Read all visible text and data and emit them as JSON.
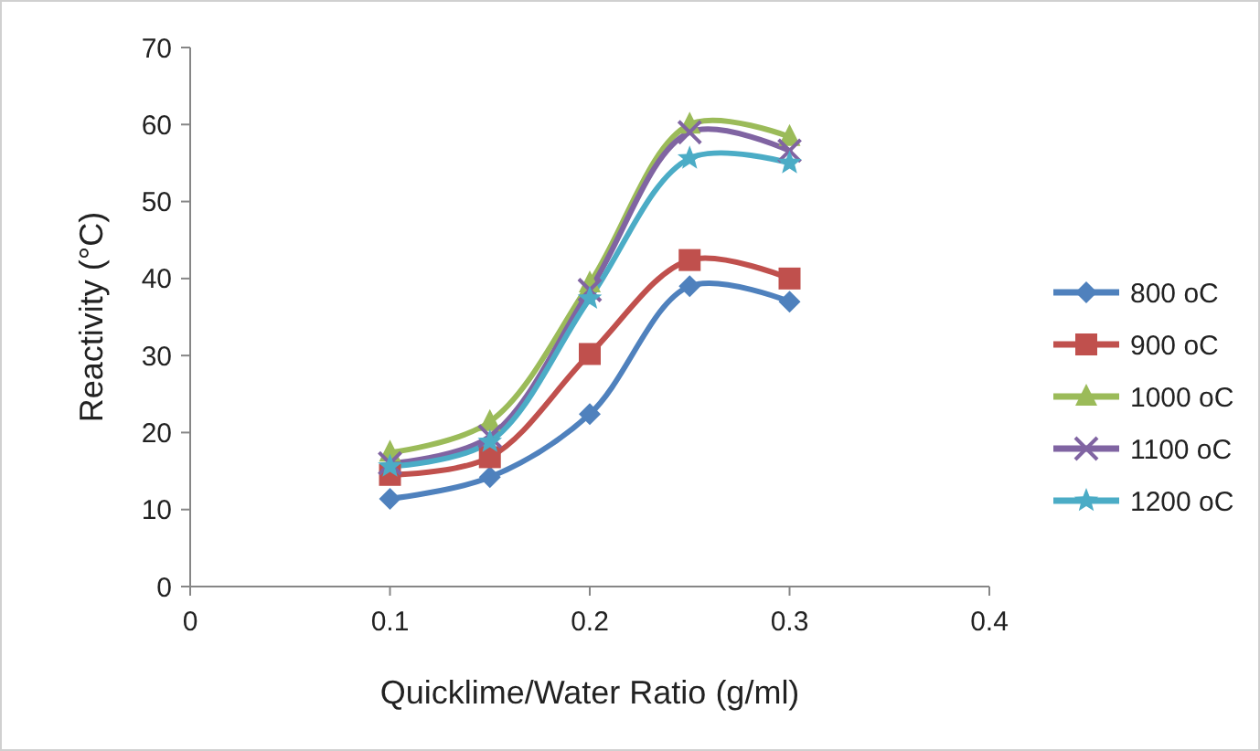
{
  "chart_data": {
    "type": "line",
    "xlabel": "Quicklime/Water Ratio (g/ml)",
    "ylabel": "Reactivity (°C)",
    "x": [
      0.1,
      0.15,
      0.2,
      0.25,
      0.3
    ],
    "series": [
      {
        "name": "800 oC",
        "color": "#4f81bd",
        "marker": "diamond",
        "values": [
          11.4,
          14.2,
          22.4,
          39,
          37
        ]
      },
      {
        "name": "900 oC",
        "color": "#c0504d",
        "marker": "square",
        "values": [
          14.5,
          16.8,
          30.2,
          42.4,
          40
        ]
      },
      {
        "name": "1000 oC",
        "color": "#9bbb59",
        "marker": "triangle",
        "values": [
          17.4,
          21.4,
          39.4,
          60,
          58.4
        ]
      },
      {
        "name": "1100 oC",
        "color": "#8064a2",
        "marker": "cross",
        "values": [
          16,
          19.5,
          38.5,
          59,
          56.6
        ]
      },
      {
        "name": "1200 oC",
        "color": "#4bacc6",
        "marker": "star",
        "values": [
          15.6,
          18.8,
          37.4,
          55.6,
          55
        ]
      }
    ],
    "xlim": [
      0,
      0.4
    ],
    "xticks": [
      0,
      0.1,
      0.2,
      0.3,
      0.4
    ],
    "ylim": [
      0,
      70
    ],
    "yticks": [
      0,
      10,
      20,
      30,
      40,
      50,
      60,
      70
    ],
    "grid": false,
    "legend": "right"
  }
}
